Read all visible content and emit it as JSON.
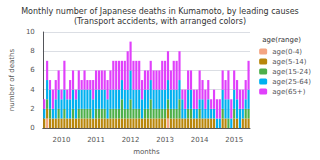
{
  "chart_data": {
    "type": "bar",
    "title": "Monthly number of Japanese deaths in Kumamoto, by leading causes",
    "subtitle": "(Transport accidents, with arranged colors)",
    "x_label": "months",
    "y_label": "number of deaths",
    "legend_title": "age(range)",
    "legend": "right",
    "stacked": true,
    "grid": true,
    "ylim": [
      0,
      10
    ],
    "yticks": [
      0,
      2,
      4,
      6,
      8,
      10
    ],
    "categories": [
      null,
      null,
      null,
      null,
      null,
      null,
      "2010",
      null,
      null,
      null,
      null,
      null,
      null,
      null,
      null,
      null,
      null,
      null,
      "2011",
      null,
      null,
      null,
      null,
      null,
      null,
      null,
      null,
      null,
      null,
      null,
      "2012",
      null,
      null,
      null,
      null,
      null,
      null,
      null,
      null,
      null,
      null,
      null,
      "2013",
      null,
      null,
      null,
      null,
      null,
      null,
      null,
      null,
      null,
      null,
      null,
      "2014",
      null,
      null,
      null,
      null,
      null,
      null,
      null,
      null,
      null,
      null,
      null,
      "2015",
      null,
      null,
      null,
      null,
      null
    ],
    "series": [
      {
        "name": "age(0-4)",
        "color": "#f4a582",
        "values": [
          0,
          1,
          0,
          0,
          0,
          0,
          0,
          0,
          0,
          0,
          0,
          0,
          0,
          0,
          0,
          0,
          0,
          0,
          0,
          0,
          0,
          0,
          0,
          0,
          0,
          0,
          0,
          0,
          0,
          0,
          0,
          0,
          0,
          0,
          0,
          0,
          0,
          0,
          0,
          0,
          0,
          0,
          0,
          1,
          0,
          0,
          0,
          0,
          0,
          0,
          0,
          0,
          0,
          0,
          0,
          0,
          0,
          0,
          0,
          0,
          0,
          0,
          0,
          0,
          0,
          0,
          0,
          0,
          0,
          0,
          0,
          0
        ]
      },
      {
        "name": "age(5-14)",
        "color": "#b8860b",
        "values": [
          1,
          1,
          1,
          1,
          1,
          1,
          1,
          1,
          1,
          1,
          1,
          1,
          1,
          1,
          1,
          1,
          1,
          1,
          1,
          1,
          1,
          1,
          1,
          1,
          1,
          1,
          1,
          1,
          1,
          1,
          1,
          1,
          1,
          1,
          1,
          1,
          1,
          1,
          1,
          1,
          1,
          1,
          1,
          1,
          1,
          1,
          1,
          1,
          1,
          1,
          1,
          1,
          1,
          1,
          1,
          1,
          1,
          1,
          1,
          1,
          0,
          0,
          1,
          1,
          0,
          0,
          1,
          1,
          0,
          1,
          1,
          1
        ]
      },
      {
        "name": "age(15-24)",
        "color": "#4daf4a",
        "values": [
          0,
          1,
          1,
          0,
          0,
          1,
          0,
          1,
          0,
          0,
          1,
          0,
          1,
          1,
          1,
          1,
          1,
          0,
          1,
          1,
          1,
          1,
          0,
          1,
          1,
          1,
          1,
          2,
          1,
          1,
          2,
          1,
          1,
          1,
          0,
          1,
          1,
          2,
          1,
          1,
          1,
          1,
          1,
          1,
          1,
          1,
          1,
          2,
          0,
          0,
          1,
          1,
          0,
          0,
          1,
          0,
          0,
          0,
          0,
          0,
          0,
          0,
          1,
          0,
          1,
          0,
          1,
          0,
          0,
          0,
          1,
          1
        ]
      },
      {
        "name": "age(25-64)",
        "color": "#00b0f0",
        "values": [
          1,
          2,
          2,
          1,
          2,
          2,
          2,
          2,
          2,
          2,
          2,
          2,
          2,
          2,
          2,
          2,
          2,
          2,
          2,
          2,
          2,
          2,
          2,
          2,
          2,
          2,
          2,
          2,
          2,
          2,
          3,
          2,
          2,
          2,
          2,
          2,
          2,
          2,
          2,
          2,
          2,
          2,
          2,
          2,
          2,
          2,
          2,
          2,
          2,
          1,
          2,
          2,
          1,
          1,
          1,
          2,
          1,
          2,
          1,
          1,
          1,
          1,
          2,
          2,
          2,
          1,
          2,
          2,
          2,
          1,
          1,
          2
        ]
      },
      {
        "name": "age(65+)",
        "color": "#e040fb",
        "values": [
          1,
          2,
          1,
          2,
          2,
          2,
          1,
          3,
          1,
          2,
          2,
          1,
          2,
          1,
          2,
          1,
          1,
          2,
          2,
          2,
          2,
          2,
          2,
          2,
          3,
          3,
          3,
          2,
          3,
          4,
          3,
          3,
          3,
          3,
          2,
          2,
          2,
          2,
          2,
          2,
          2,
          3,
          3,
          3,
          2,
          3,
          3,
          3,
          1,
          2,
          2,
          2,
          2,
          2,
          3,
          2,
          2,
          2,
          1,
          2,
          2,
          2,
          2,
          2,
          3,
          2,
          2,
          2,
          2,
          2,
          2,
          3
        ]
      }
    ]
  }
}
